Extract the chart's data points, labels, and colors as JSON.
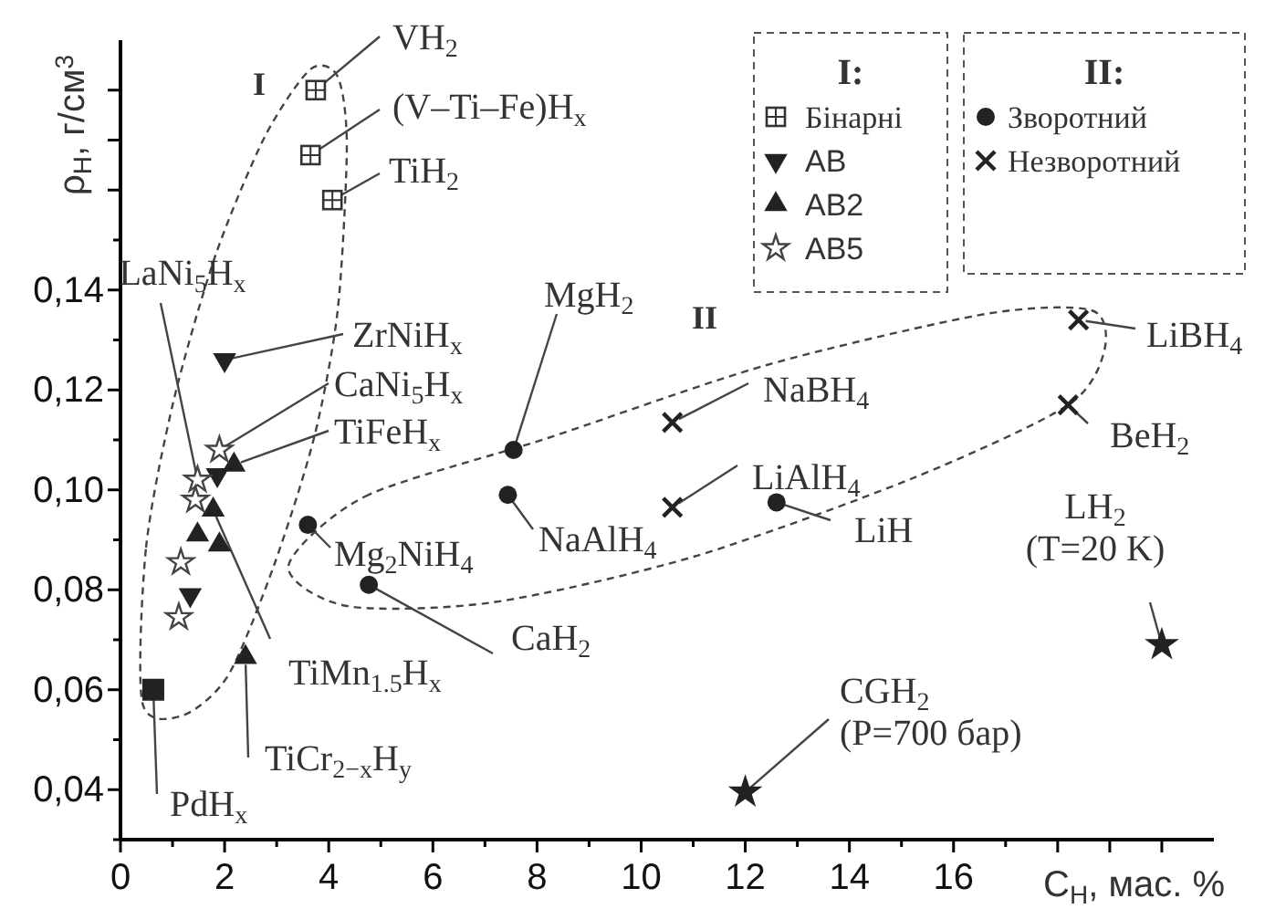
{
  "chart_data": {
    "type": "scatter",
    "xlabel": "C$_{H}$, мас. %",
    "ylabel": "ρ$_{H}$, г/см$^{3}$",
    "xlim": [
      0,
      21
    ],
    "ylim": [
      0.03,
      0.19
    ],
    "xticks": [
      0,
      {
        "value": 1,
        "label": null
      },
      2,
      {
        "value": 3,
        "label": null
      },
      4,
      {
        "value": 5,
        "label": null
      },
      6,
      {
        "value": 7,
        "label": null
      },
      8,
      {
        "value": 9,
        "label": null
      },
      10,
      {
        "value": 11,
        "label": null
      },
      12,
      {
        "value": 13,
        "label": null
      },
      14,
      {
        "value": 15,
        "label": null
      },
      16,
      {
        "value": 17,
        "label": null
      },
      {
        "value": 18,
        "label": null
      },
      {
        "value": 19,
        "label": null
      },
      {
        "value": 20,
        "label": null
      }
    ],
    "yticks": [
      {
        "value": 0.03,
        "label": null
      },
      {
        "value": 0.04,
        "label": "0,04"
      },
      {
        "value": 0.05,
        "label": null
      },
      {
        "value": 0.06,
        "label": "0,06"
      },
      {
        "value": 0.07,
        "label": null
      },
      {
        "value": 0.08,
        "label": "0,08"
      },
      {
        "value": 0.09,
        "label": null
      },
      {
        "value": 0.1,
        "label": "0,10"
      },
      {
        "value": 0.11,
        "label": null
      },
      {
        "value": 0.12,
        "label": "0,12"
      },
      {
        "value": 0.13,
        "label": null
      },
      {
        "value": 0.14,
        "label": "0,14"
      },
      {
        "value": 0.15,
        "label": null
      },
      {
        "value": 0.16,
        "label": null
      },
      {
        "value": 0.17,
        "label": null
      },
      {
        "value": 0.18,
        "label": null
      }
    ],
    "grid": false,
    "legend": "top right",
    "series": [
      {
        "name": "Бінарні",
        "color": "#333333",
        "marker": "square-plus",
        "x": [
          3.75,
          3.65,
          4.07
        ],
        "values": [
          0.18,
          0.167,
          0.158
        ]
      },
      {
        "name": "AB",
        "color": "#222222",
        "marker": "triangle-down",
        "x": [
          2.0,
          1.86,
          1.34
        ],
        "values": [
          0.126,
          0.103,
          0.079
        ]
      },
      {
        "name": "AB2",
        "color": "#222222",
        "marker": "triangle",
        "x": [
          2.18,
          1.78,
          1.48,
          1.9,
          2.4
        ],
        "values": [
          0.105,
          0.096,
          0.091,
          0.089,
          0.0665
        ]
      },
      {
        "name": "AB5",
        "color": "#444444",
        "marker": "star-open",
        "x": [
          1.9,
          1.48,
          1.44,
          1.16,
          1.12
        ],
        "values": [
          0.108,
          0.102,
          0.098,
          0.0855,
          0.0745
        ]
      },
      {
        "name": "Зворотний",
        "color": "#222222",
        "marker": "circle",
        "x": [
          7.55,
          7.44,
          3.6,
          4.77,
          12.6
        ],
        "values": [
          0.108,
          0.099,
          0.093,
          0.081,
          0.0975
        ]
      },
      {
        "name": "Незворотний",
        "color": "#222222",
        "marker": "cross",
        "x": [
          10.6,
          10.6,
          18.4,
          18.2
        ],
        "values": [
          0.1135,
          0.0965,
          0.134,
          0.117
        ]
      },
      {
        "color": "#222222",
        "marker": "square",
        "x": [
          0.63
        ],
        "values": [
          0.06
        ]
      },
      {
        "color": "#222222",
        "marker": "star",
        "x": [
          20.0,
          12.0
        ],
        "values": [
          0.069,
          0.0395
        ]
      }
    ],
    "annotations": [
      "I:",
      "II:",
      "I",
      "II",
      {
        "text": "VH$_{2}$",
        "x": 3.75,
        "y": 0.18
      },
      {
        "text": "(V–Ti–Fe)H$_{x}$",
        "x": 3.65,
        "y": 0.167
      },
      {
        "text": "TiH$_{2}$",
        "x": 4.07,
        "y": 0.158
      },
      {
        "text": "LaNi$_{5}$H$_{x}$",
        "x": 1.48,
        "y": 0.102
      },
      {
        "text": "ZrNiH$_{x}$",
        "x": 2.0,
        "y": 0.126
      },
      {
        "text": "CaNi$_{5}$H$_{x}$",
        "x": 1.9,
        "y": 0.108
      },
      {
        "text": "TiFeH$_{x}$",
        "x": 2.18,
        "y": 0.105
      },
      {
        "text": "TiMn$_{1.5}$H$_{x}$",
        "x": 1.78,
        "y": 0.096
      },
      {
        "text": "TiCr$_{2−x}$H$_{y}$",
        "x": 2.4,
        "y": 0.0665
      },
      {
        "text": "PdH$_{x}$",
        "x": 0.63,
        "y": 0.06
      },
      {
        "text": "Mg$_{2}$NiH$_{4}$",
        "x": 3.6,
        "y": 0.093
      },
      {
        "text": "CaH$_{2}$",
        "x": 4.77,
        "y": 0.081
      },
      {
        "text": "MgH$_{2}$",
        "x": 7.55,
        "y": 0.108
      },
      {
        "text": "NaAlH$_{4}$",
        "x": 7.44,
        "y": 0.099
      },
      {
        "text": "NaBH$_{4}$",
        "x": 10.6,
        "y": 0.1135
      },
      {
        "text": "LiAlH$_{4}$",
        "x": 10.6,
        "y": 0.0965
      },
      {
        "text": "LiH",
        "x": 12.6,
        "y": 0.0975
      },
      {
        "text": "LiBH$_{4}$",
        "x": 18.4,
        "y": 0.134
      },
      {
        "text": "BeH$_{2}$",
        "x": 18.2,
        "y": 0.117
      },
      {
        "text": "LH$_{2}$\n(T=20 K)",
        "x": 20.0,
        "y": 0.069
      },
      {
        "text": "CGH$_{2}$\n(P=700 бар)",
        "x": 12.0,
        "y": 0.0395
      }
    ]
  }
}
